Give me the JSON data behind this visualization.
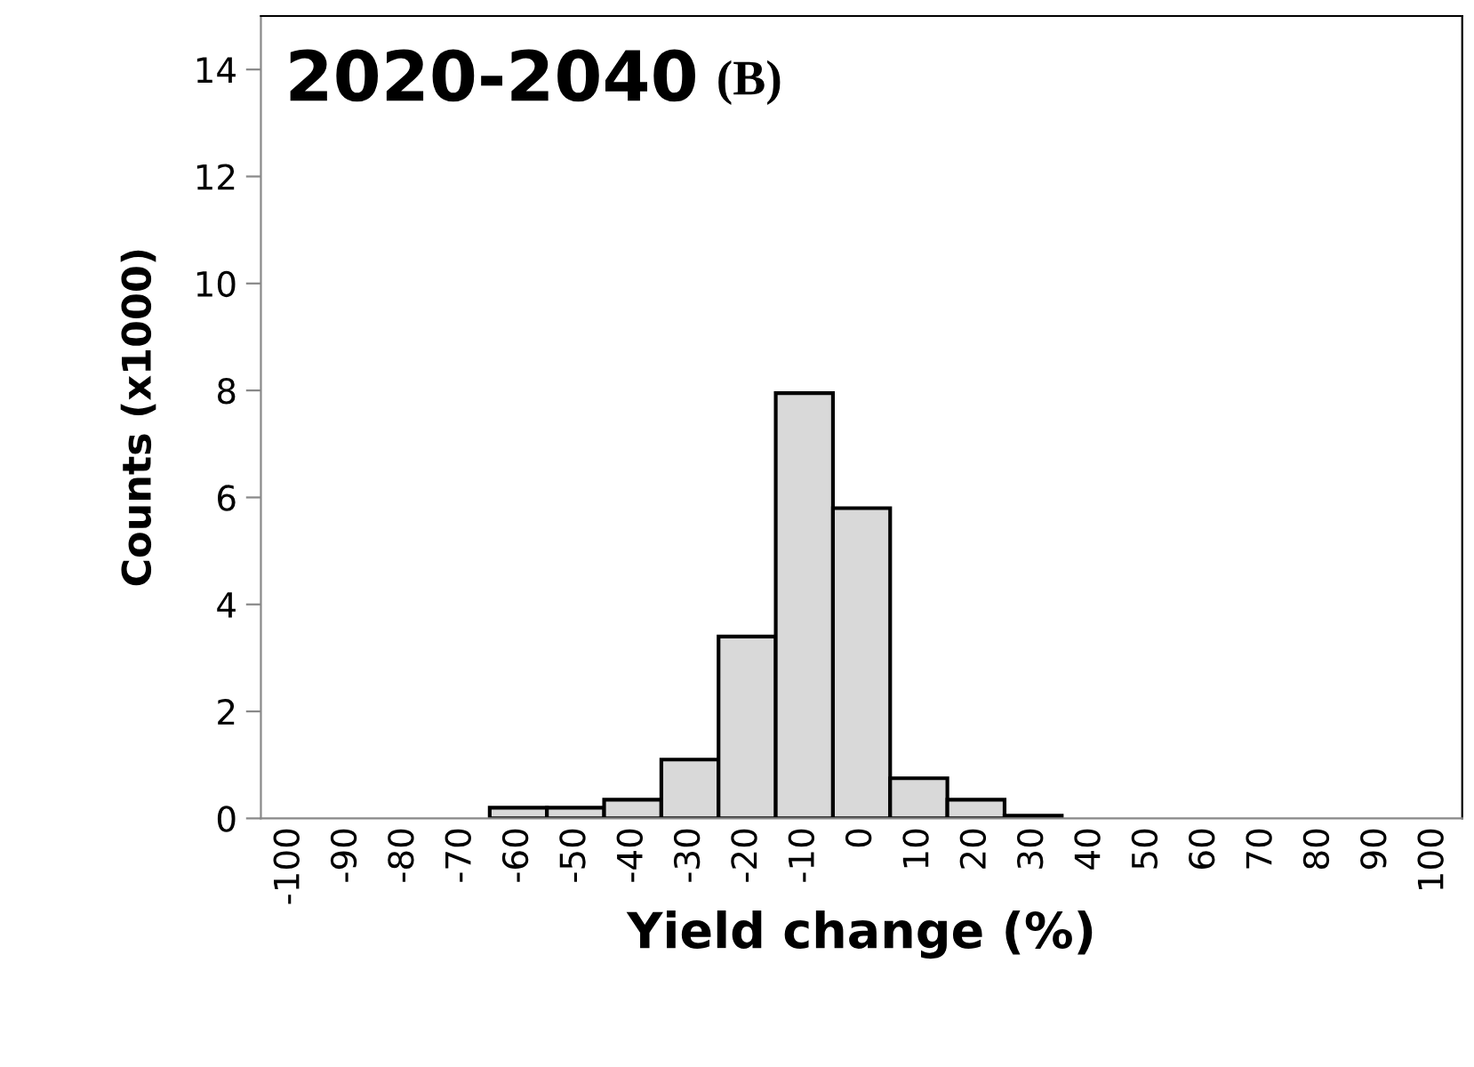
{
  "chart_data": {
    "type": "bar",
    "title": "2020-2040",
    "subtitle": "(B)",
    "xlabel": "Yield change (%)",
    "ylabel": "Counts (x1000)",
    "categories": [
      "-100",
      "-90",
      "-80",
      "-70",
      "-60",
      "-50",
      "-40",
      "-30",
      "-20",
      "-10",
      "0",
      "10",
      "20",
      "30",
      "40",
      "50",
      "60",
      "70",
      "80",
      "90",
      "100"
    ],
    "values": [
      0,
      0,
      0,
      0,
      0.2,
      0.2,
      0.35,
      1.1,
      3.4,
      7.95,
      5.8,
      0.75,
      0.35,
      0.05,
      0,
      0,
      0,
      0,
      0,
      0,
      0
    ],
    "color": "#d9d9d9",
    "ylim": [
      0,
      15
    ],
    "yticks": [
      0,
      2,
      4,
      6,
      8,
      10,
      12,
      14
    ],
    "grid": false
  }
}
